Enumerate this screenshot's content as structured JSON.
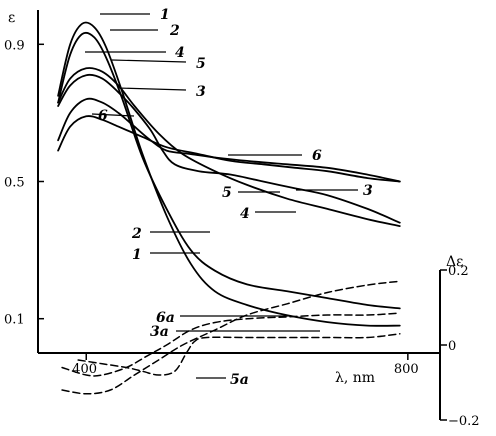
{
  "chart_data": {
    "type": "line",
    "title": "",
    "xlabel": "λ, nm",
    "ylabel": "ε",
    "y2label": "Δε",
    "xlim": [
      340,
      840
    ],
    "ylim": [
      0,
      1.0
    ],
    "y2lim": [
      -0.2,
      0.2
    ],
    "x_ticks": [
      {
        "value": 400,
        "label": "400"
      },
      {
        "value": 800,
        "label": "800"
      }
    ],
    "y_ticks": [
      {
        "value": 0.1,
        "label": "0.1"
      },
      {
        "value": 0.5,
        "label": "0.5"
      },
      {
        "value": 0.9,
        "label": "0.9"
      }
    ],
    "y2_ticks": [
      {
        "value": 0.2,
        "label": "0.2"
      },
      {
        "value": 0,
        "label": "0"
      },
      {
        "value": -0.2,
        "label": "−0.2"
      }
    ],
    "grid": false,
    "series": [
      {
        "name": "1",
        "axis": "left",
        "style": "solid",
        "x": [
          365,
          380,
          395,
          410,
          425,
          445,
          470,
          500,
          530,
          560,
          600,
          650,
          700,
          750,
          790
        ],
        "y": [
          0.75,
          0.9,
          0.96,
          0.95,
          0.89,
          0.76,
          0.58,
          0.4,
          0.26,
          0.18,
          0.14,
          0.11,
          0.09,
          0.08,
          0.08
        ]
      },
      {
        "name": "2",
        "axis": "left",
        "style": "solid",
        "x": [
          365,
          380,
          395,
          410,
          425,
          445,
          470,
          500,
          530,
          560,
          600,
          650,
          700,
          750,
          790
        ],
        "y": [
          0.73,
          0.87,
          0.93,
          0.92,
          0.86,
          0.74,
          0.57,
          0.42,
          0.3,
          0.24,
          0.2,
          0.18,
          0.16,
          0.14,
          0.13
        ]
      },
      {
        "name": "3",
        "axis": "left",
        "style": "solid",
        "x": [
          365,
          380,
          400,
          420,
          440,
          460,
          480,
          500,
          530,
          560,
          600,
          650,
          700,
          750,
          790
        ],
        "y": [
          0.62,
          0.7,
          0.74,
          0.73,
          0.7,
          0.66,
          0.62,
          0.59,
          0.58,
          0.57,
          0.56,
          0.55,
          0.54,
          0.52,
          0.5
        ]
      },
      {
        "name": "4",
        "axis": "left",
        "style": "solid",
        "x": [
          365,
          380,
          400,
          420,
          440,
          460,
          490,
          520,
          560,
          600,
          650,
          700,
          750,
          790
        ],
        "y": [
          0.73,
          0.8,
          0.83,
          0.82,
          0.78,
          0.72,
          0.64,
          0.58,
          0.53,
          0.49,
          0.45,
          0.42,
          0.39,
          0.37
        ]
      },
      {
        "name": "5",
        "axis": "left",
        "style": "solid",
        "x": [
          365,
          380,
          400,
          420,
          440,
          460,
          480,
          495,
          510,
          540,
          580,
          620,
          660,
          700,
          750,
          790
        ],
        "y": [
          0.72,
          0.78,
          0.81,
          0.8,
          0.76,
          0.71,
          0.65,
          0.59,
          0.55,
          0.53,
          0.52,
          0.5,
          0.48,
          0.46,
          0.42,
          0.38
        ]
      },
      {
        "name": "6",
        "axis": "left",
        "style": "solid",
        "x": [
          365,
          380,
          400,
          420,
          440,
          470,
          500,
          540,
          580,
          620,
          660,
          700,
          750,
          790
        ],
        "y": [
          0.59,
          0.66,
          0.69,
          0.68,
          0.66,
          0.63,
          0.6,
          0.58,
          0.56,
          0.55,
          0.54,
          0.53,
          0.51,
          0.5
        ]
      },
      {
        "name": "3a",
        "axis": "right",
        "style": "dashed",
        "x": [
          370,
          400,
          420,
          450,
          475,
          500,
          530,
          560,
          600,
          650,
          700,
          750,
          790
        ],
        "y": [
          -0.06,
          -0.08,
          -0.08,
          -0.06,
          -0.03,
          0.0,
          0.04,
          0.06,
          0.07,
          0.075,
          0.08,
          0.08,
          0.085
        ]
      },
      {
        "name": "5a",
        "axis": "right",
        "style": "dashed",
        "x": [
          390,
          420,
          450,
          470,
          490,
          510,
          525,
          535,
          550,
          600,
          650,
          700,
          750,
          790
        ],
        "y": [
          -0.04,
          -0.05,
          -0.06,
          -0.07,
          -0.08,
          -0.07,
          -0.02,
          0.01,
          0.02,
          0.02,
          0.02,
          0.02,
          0.02,
          0.03
        ]
      },
      {
        "name": "6a",
        "axis": "right",
        "style": "dashed",
        "x": [
          370,
          400,
          430,
          460,
          490,
          520,
          560,
          600,
          650,
          700,
          750,
          790
        ],
        "y": [
          -0.12,
          -0.13,
          -0.12,
          -0.08,
          -0.04,
          0.0,
          0.04,
          0.08,
          0.11,
          0.14,
          0.16,
          0.17
        ]
      }
    ]
  }
}
